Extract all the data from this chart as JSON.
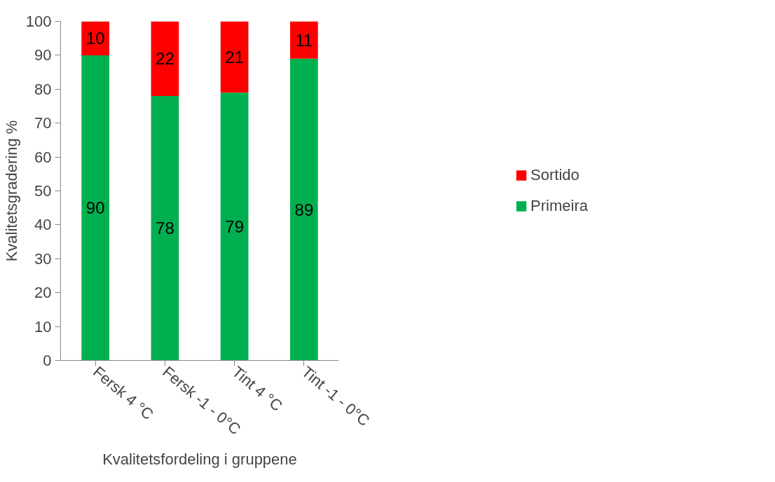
{
  "chart_data": {
    "type": "bar",
    "stacked": true,
    "xlabel": "Kvalitetsfordeling i gruppene",
    "ylabel": "Kvalitetsgradering %",
    "categories": [
      "Fersk 4 °C",
      "Fersk -1 - 0°C",
      "Tint 4 °C",
      "Tint -1 - 0°C"
    ],
    "series": [
      {
        "name": "Primeira",
        "color": "#00b050",
        "values": [
          90,
          78,
          79,
          89
        ]
      },
      {
        "name": "Sortido",
        "color": "#ff0000",
        "values": [
          10,
          22,
          21,
          11
        ]
      }
    ],
    "ylim": [
      0,
      100
    ],
    "yticks": [
      0,
      10,
      20,
      30,
      40,
      50,
      60,
      70,
      80,
      90,
      100
    ],
    "data_labels": true,
    "legend": "right",
    "grid": false
  }
}
